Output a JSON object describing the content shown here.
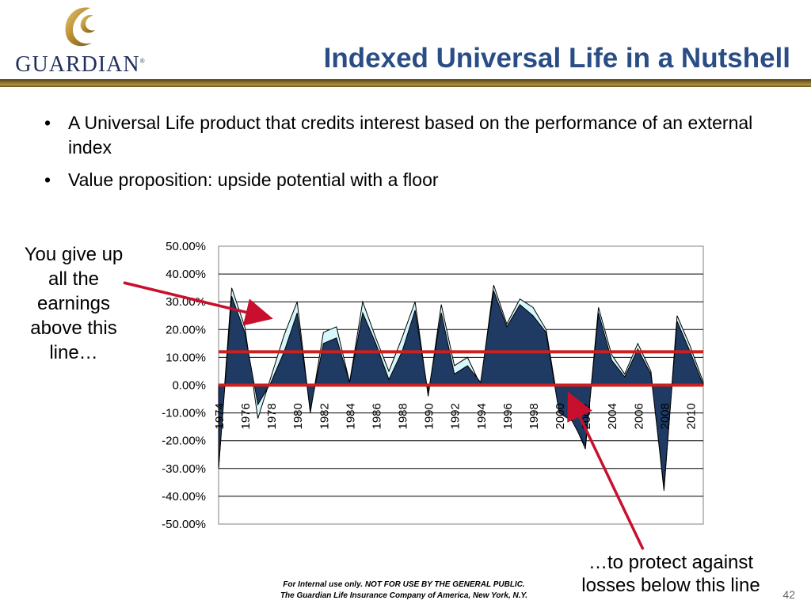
{
  "header": {
    "logo_text": "GUARDIAN",
    "title": "Indexed Universal Life in a Nutshell"
  },
  "bullets": [
    {
      "text": "A Universal Life product that credits interest based on the performance of an external index"
    },
    {
      "text": "Value proposition: upside potential with a floor"
    }
  ],
  "annotations": {
    "left": "You give up all the earnings above this line…",
    "right": "…to protect against losses below this line"
  },
  "footer": {
    "line1": "For Internal  use only.  NOT FOR USE BY THE GENERAL PUBLIC.",
    "line2": "The Guardian Life Insurance Company of America, New York, N.Y."
  },
  "page_number": "42",
  "colors": {
    "title": "#2a4d86",
    "index_fill": "#1f3a63",
    "cap_area_fill": "#d4f8fc",
    "reference_line": "#cc1f1f",
    "arrow": "#c8102e"
  },
  "chart_data": {
    "type": "area",
    "x": [
      1974,
      1975,
      1976,
      1977,
      1978,
      1979,
      1980,
      1981,
      1982,
      1983,
      1984,
      1985,
      1986,
      1987,
      1988,
      1989,
      1990,
      1991,
      1992,
      1993,
      1994,
      1995,
      1996,
      1997,
      1998,
      1999,
      2000,
      2001,
      2002,
      2003,
      2004,
      2005,
      2006,
      2007,
      2008,
      2009,
      2010,
      2011
    ],
    "tick_labels": [
      "1974",
      "1976",
      "1978",
      "1980",
      "1982",
      "1984",
      "1986",
      "1988",
      "1990",
      "1992",
      "1994",
      "1996",
      "1998",
      "2000",
      "2002",
      "2004",
      "2006",
      "2008",
      "2010"
    ],
    "series": [
      {
        "values": [
          -30,
          35,
          21,
          -12,
          3,
          18,
          30,
          -10,
          19,
          21,
          1,
          30,
          17,
          5,
          17,
          30,
          -4,
          29,
          7,
          10,
          0,
          36,
          22,
          31,
          28,
          20,
          -9,
          -12,
          -23,
          28,
          11,
          4,
          15,
          5,
          -38,
          25,
          14,
          1
        ]
      },
      {
        "values": [
          -30,
          32,
          19,
          -7,
          1,
          12,
          26,
          -9,
          15,
          17,
          1,
          26,
          15,
          2,
          12,
          27,
          -3,
          26,
          4,
          7,
          1,
          34,
          21,
          29,
          25,
          19,
          -10,
          -13,
          -22,
          26,
          9,
          3,
          13,
          4,
          -37,
          23,
          12,
          0
        ]
      }
    ],
    "ylim": [
      -50,
      50
    ],
    "yticks": [
      "50.00%",
      "40.00%",
      "30.00%",
      "20.00%",
      "10.00%",
      "0.00%",
      "-10.00%",
      "-20.00%",
      "-30.00%",
      "-40.00%",
      "-50.00%"
    ],
    "cap_value": 12,
    "floor_value": 0,
    "grid": true
  }
}
